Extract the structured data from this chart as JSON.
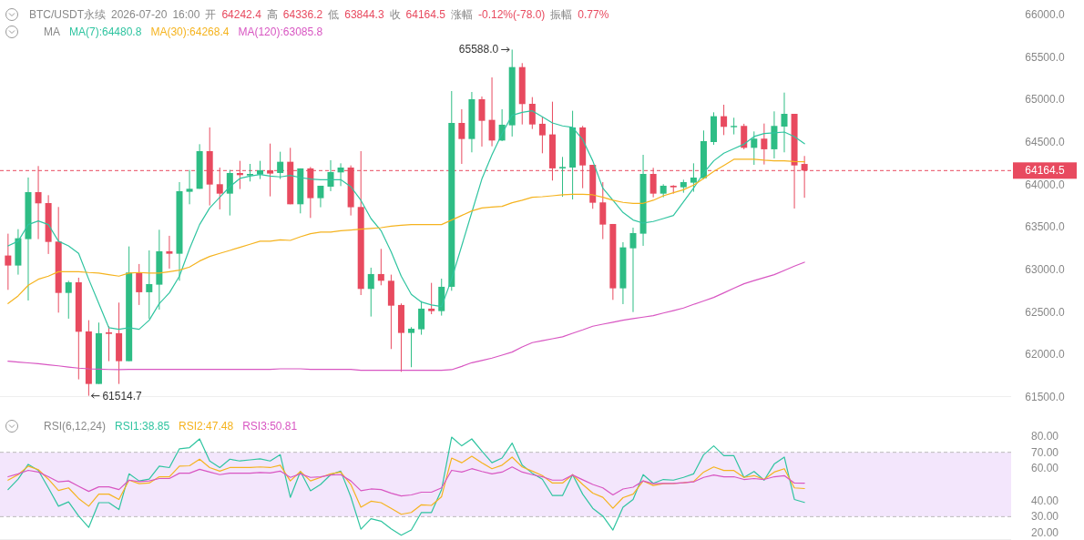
{
  "chart_data": [
    {
      "type": "candlestick",
      "title": "BTC/USDT永续 2026-07-20 16:00 开 64242.4 高 64336.2 低 63844.3 收 64164.5 涨幅 -0.12%(-78.0) 振幅 0.77%",
      "legend_title": "MA",
      "legend": "top",
      "categories": [
        null,
        null,
        null,
        null,
        null,
        null,
        null,
        null,
        null,
        null,
        null,
        null,
        null,
        null,
        null,
        null,
        null,
        null,
        null,
        null,
        null,
        null,
        null,
        null,
        null,
        null,
        null,
        null,
        null,
        null,
        null,
        null,
        null,
        null,
        null,
        null,
        null,
        null,
        null,
        null,
        null,
        null,
        null,
        null,
        null,
        null,
        null,
        null,
        null,
        null,
        null,
        null,
        null,
        null,
        null,
        null,
        null,
        null,
        null,
        null,
        null,
        null,
        null,
        null,
        null,
        null,
        null,
        null,
        null,
        null,
        null,
        null,
        null,
        null,
        null,
        null,
        null,
        null,
        null,
        null
      ],
      "ohlc": [
        [
          63165,
          63422,
          62761,
          63047
        ],
        [
          63047,
          63475,
          62940,
          63368
        ],
        [
          63358,
          64083,
          62636,
          63911
        ],
        [
          63911,
          64218,
          63358,
          63779
        ],
        [
          63782,
          63875,
          63183,
          63325
        ],
        [
          63329,
          63736,
          62493,
          62725
        ],
        [
          62725,
          62868,
          62422,
          62850
        ],
        [
          62850,
          62904,
          61708,
          62268
        ],
        [
          62272,
          62404,
          61514.7,
          61654
        ],
        [
          61654,
          62376,
          61654,
          62251
        ],
        [
          62261,
          62333,
          61922,
          62243
        ],
        [
          62251,
          62611,
          61654,
          61922
        ],
        [
          61922,
          63272,
          61922,
          62965
        ],
        [
          62965,
          63065,
          62583,
          62733
        ],
        [
          62733,
          63225,
          62422,
          62829
        ],
        [
          62822,
          63468,
          62529,
          63215
        ],
        [
          63215,
          63397,
          63011,
          63186
        ],
        [
          63186,
          64029,
          62868,
          63922
        ],
        [
          63915,
          64172,
          63768,
          63950
        ],
        [
          63950,
          64475,
          63950,
          64393
        ],
        [
          64393,
          64672,
          63754,
          64000
        ],
        [
          64004,
          64200,
          63708,
          63893
        ],
        [
          63893,
          64172,
          63636,
          64136
        ],
        [
          64136,
          64279,
          63947,
          64111
        ],
        [
          64107,
          64243,
          64036,
          64125
        ],
        [
          64118,
          64279,
          64065,
          64168
        ],
        [
          64168,
          64482,
          63861,
          64129
        ],
        [
          64136,
          64386,
          64065,
          64268
        ],
        [
          64268,
          64432,
          63768,
          63768
        ],
        [
          63768,
          64190,
          63661,
          64190
        ],
        [
          64190,
          64207,
          63607,
          63840
        ],
        [
          63840,
          63986,
          63733,
          63986
        ],
        [
          63975,
          64286,
          63922,
          64147
        ],
        [
          64143,
          64250,
          63982,
          64200
        ],
        [
          64200,
          64225,
          63636,
          63733
        ],
        [
          63736,
          64393,
          62700,
          62772
        ],
        [
          62772,
          63022,
          62447,
          62947
        ],
        [
          62947,
          63243,
          62815,
          62868
        ],
        [
          62868,
          62940,
          62065,
          62575
        ],
        [
          62583,
          62601,
          61797,
          62254
        ],
        [
          62254,
          62322,
          61851,
          62304
        ],
        [
          62297,
          62629,
          62233,
          62540
        ],
        [
          62540,
          62843,
          62475,
          62511
        ],
        [
          62511,
          62893,
          62458,
          62797
        ],
        [
          62797,
          65100,
          62750,
          64725
        ],
        [
          64725,
          64886,
          64243,
          64536
        ],
        [
          64536,
          65089,
          64379,
          65004
        ],
        [
          65004,
          65036,
          64447,
          64750
        ],
        [
          64761,
          65261,
          64450,
          64518
        ],
        [
          64518,
          64886,
          64511,
          64704
        ],
        [
          64697,
          65588.0,
          64565,
          65382
        ],
        [
          65382,
          65429,
          64707,
          64947
        ],
        [
          64950,
          65029,
          64654,
          64707
        ],
        [
          64715,
          64797,
          64368,
          64579
        ],
        [
          64590,
          64975,
          64047,
          64190
        ],
        [
          64190,
          64325,
          63857,
          64207
        ],
        [
          64200,
          64868,
          63825,
          64672
        ],
        [
          64672,
          64690,
          63957,
          64225
        ],
        [
          64232,
          64232,
          63715,
          63786
        ],
        [
          63790,
          64029,
          63358,
          63529
        ],
        [
          63536,
          63536,
          62643,
          62779
        ],
        [
          62779,
          63322,
          62593,
          63261
        ],
        [
          63250,
          63493,
          62500,
          63429
        ],
        [
          63422,
          64350,
          63279,
          64125
        ],
        [
          64125,
          64197,
          63850,
          63893
        ],
        [
          63893,
          64004,
          63850,
          63986
        ],
        [
          63986,
          63993,
          63893,
          63968
        ],
        [
          63968,
          64057,
          63904,
          64029
        ],
        [
          64022,
          64250,
          63915,
          64082
        ],
        [
          64075,
          64636,
          64065,
          64511
        ],
        [
          64500,
          64850,
          64468,
          64804
        ],
        [
          64804,
          64939,
          64582,
          64679
        ],
        [
          64675,
          64786,
          64590,
          64690
        ],
        [
          64690,
          64715,
          64415,
          64432
        ],
        [
          64432,
          64625,
          64232,
          64540
        ],
        [
          64540,
          64718,
          64236,
          64415
        ],
        [
          64415,
          64861,
          64307,
          64690
        ],
        [
          64682,
          65082,
          64379,
          64832
        ],
        [
          64832,
          64832,
          63718,
          64225
        ],
        [
          64242.4,
          64336.2,
          63844.3,
          64164.5
        ]
      ],
      "series": [
        {
          "name": "MA(7):64480.8",
          "type": "line",
          "color": "#2fc4a0",
          "values": [
            63279,
            63333,
            63529,
            63572,
            63529,
            63333,
            63279,
            63190,
            62886,
            62600,
            62315,
            62297,
            62315,
            62297,
            62404,
            62600,
            62725,
            62922,
            63243,
            63529,
            63725,
            63850,
            63975,
            64072,
            64100,
            64118,
            64100,
            64090,
            64107,
            64082,
            64065,
            64057,
            64057,
            64057,
            63975,
            63815,
            63600,
            63457,
            63208,
            62922,
            62708,
            62618,
            62583,
            62565,
            62886,
            63279,
            63672,
            64065,
            64350,
            64600,
            64815,
            64850,
            64868,
            64797,
            64725,
            64690,
            64672,
            64529,
            64279,
            63957,
            63815,
            63672,
            63583,
            63547,
            63565,
            63600,
            63636,
            63797,
            63957,
            64136,
            64279,
            64368,
            64422,
            64475,
            64565,
            64600,
            64608,
            64618,
            64565,
            64480.8
          ]
        },
        {
          "name": "MA(30):64268.4",
          "type": "line",
          "color": "#f5b31e",
          "values": [
            62600,
            62690,
            62815,
            62886,
            62922,
            62975,
            62975,
            62975,
            62965,
            62958,
            62940,
            62922,
            62958,
            62965,
            62958,
            62958,
            62975,
            62993,
            63029,
            63100,
            63154,
            63190,
            63225,
            63261,
            63297,
            63333,
            63333,
            63350,
            63343,
            63386,
            63422,
            63440,
            63440,
            63457,
            63465,
            63475,
            63483,
            63493,
            63511,
            63522,
            63529,
            63529,
            63529,
            63529,
            63583,
            63636,
            63690,
            63725,
            63736,
            63743,
            63786,
            63815,
            63850,
            63857,
            63868,
            63879,
            63886,
            63886,
            63879,
            63850,
            63815,
            63790,
            63779,
            63779,
            63815,
            63868,
            63904,
            63939,
            63993,
            64072,
            64154,
            64225,
            64297,
            64297,
            64297,
            64286,
            64279,
            64279,
            64272,
            64268.4
          ]
        },
        {
          "name": "MA(120):63085.8",
          "type": "line",
          "color": "#d856c2",
          "values": [
            61922,
            61912,
            61902,
            61893,
            61880,
            61867,
            61853,
            61840,
            61832,
            61828,
            61824,
            61822,
            61825,
            61825,
            61825,
            61825,
            61825,
            61825,
            61825,
            61825,
            61825,
            61825,
            61825,
            61825,
            61825,
            61825,
            61825,
            61832,
            61832,
            61832,
            61825,
            61825,
            61825,
            61825,
            61825,
            61815,
            61815,
            61815,
            61815,
            61815,
            61815,
            61815,
            61815,
            61815,
            61822,
            61860,
            61904,
            61930,
            61958,
            61993,
            62029,
            62090,
            62140,
            62163,
            62186,
            62208,
            62250,
            62290,
            62333,
            62357,
            62380,
            62404,
            62422,
            62440,
            62458,
            62488,
            62517,
            62547,
            62590,
            62630,
            62672,
            62725,
            62780,
            62833,
            62870,
            62905,
            62940,
            62990,
            63040,
            63085.8
          ]
        }
      ],
      "ylim": [
        61500,
        66000
      ],
      "yticks": [
        {
          "value": 61500,
          "label": "61500.0"
        },
        {
          "value": 62000,
          "label": "62000.0"
        },
        {
          "value": 62500,
          "label": "62500.0"
        },
        {
          "value": 63000,
          "label": "63000.0"
        },
        {
          "value": 63500,
          "label": "63500.0"
        },
        {
          "value": 64000,
          "label": "64000.0"
        },
        {
          "value": 64500,
          "label": "64500.0"
        },
        {
          "value": 65000,
          "label": "65000.0"
        },
        {
          "value": 65500,
          "label": "65500.0"
        },
        {
          "value": 66000,
          "label": "66000.0"
        }
      ],
      "ref_lines": [
        {
          "axis": "y",
          "value": 64164.5,
          "label": "64164.5",
          "color": "#e84a5f",
          "line_style": "dashed"
        }
      ],
      "annotations": [
        "65588.0",
        "61514.7"
      ]
    },
    {
      "type": "line",
      "legend_title": "RSI(6,12,24)",
      "legend": "top left",
      "categories": [
        null,
        null,
        null,
        null,
        null,
        null,
        null,
        null,
        null,
        null,
        null,
        null,
        null,
        null,
        null,
        null,
        null,
        null,
        null,
        null,
        null,
        null,
        null,
        null,
        null,
        null,
        null,
        null,
        null,
        null,
        null,
        null,
        null,
        null,
        null,
        null,
        null,
        null,
        null,
        null,
        null,
        null,
        null,
        null,
        null,
        null,
        null,
        null,
        null,
        null,
        null,
        null,
        null,
        null,
        null,
        null,
        null,
        null,
        null,
        null,
        null,
        null,
        null,
        null,
        null,
        null,
        null,
        null,
        null,
        null,
        null,
        null,
        null,
        null,
        null,
        null,
        null,
        null,
        null,
        null
      ],
      "series": [
        {
          "name": "RSI1:38.85",
          "color": "#2fc4a0",
          "values": [
            46.8,
            53.3,
            62.5,
            58.8,
            47.9,
            36.5,
            39.2,
            30.4,
            23.3,
            38.7,
            38.7,
            34.4,
            56.6,
            52.2,
            53.3,
            61.4,
            60.5,
            72.2,
            72.9,
            78.3,
            64.6,
            60.5,
            65.7,
            64.6,
            65.3,
            65.9,
            64.6,
            68.5,
            42.0,
            58.1,
            46.1,
            50.0,
            56.1,
            58.3,
            42.4,
            22.2,
            28.7,
            27.2,
            22.4,
            18.5,
            21.7,
            32.6,
            32.6,
            46.8,
            79.4,
            74.0,
            78.3,
            70.7,
            63.5,
            66.4,
            75.7,
            62.0,
            57.0,
            53.3,
            43.1,
            43.1,
            56.1,
            44.0,
            35.2,
            30.4,
            21.7,
            35.9,
            40.7,
            56.1,
            50.7,
            53.1,
            52.7,
            54.4,
            56.6,
            68.5,
            74.0,
            67.9,
            67.9,
            54.4,
            58.1,
            52.7,
            62.7,
            67.0,
            40.7,
            38.85
          ]
        },
        {
          "name": "RSI2:47.48",
          "color": "#f5b31e",
          "values": [
            52.7,
            56.1,
            61.4,
            59.2,
            53.3,
            46.3,
            47.9,
            41.3,
            36.5,
            44.0,
            44.0,
            40.7,
            52.7,
            50.5,
            50.9,
            54.8,
            54.8,
            61.4,
            61.6,
            65.7,
            60.5,
            58.3,
            60.5,
            60.5,
            60.5,
            60.9,
            60.5,
            62.0,
            52.2,
            58.1,
            52.2,
            54.4,
            56.6,
            57.7,
            50.0,
            35.9,
            39.6,
            38.7,
            35.2,
            31.5,
            32.6,
            37.4,
            37.0,
            42.4,
            66.4,
            63.5,
            67.5,
            63.5,
            59.8,
            62.0,
            67.0,
            60.9,
            58.3,
            55.5,
            50.9,
            50.9,
            56.1,
            50.0,
            44.6,
            42.0,
            35.2,
            41.8,
            44.0,
            52.2,
            49.4,
            50.5,
            50.7,
            51.1,
            51.8,
            57.7,
            60.9,
            58.7,
            58.7,
            54.4,
            55.5,
            53.1,
            57.7,
            59.8,
            47.9,
            47.48
          ]
        },
        {
          "name": "RSI3:50.81",
          "color": "#d856c2",
          "values": [
            54.8,
            56.6,
            58.8,
            57.7,
            54.8,
            51.6,
            52.2,
            48.9,
            45.7,
            48.5,
            48.5,
            46.8,
            52.7,
            51.8,
            52.2,
            53.7,
            53.7,
            57.0,
            57.0,
            59.4,
            57.7,
            56.1,
            57.0,
            57.0,
            57.0,
            57.4,
            57.2,
            58.3,
            54.4,
            56.6,
            54.4,
            54.8,
            55.9,
            56.1,
            52.2,
            46.1,
            47.2,
            46.8,
            44.6,
            42.9,
            43.5,
            45.2,
            45.2,
            47.9,
            58.8,
            57.7,
            59.8,
            58.1,
            56.6,
            57.7,
            60.9,
            57.7,
            56.1,
            54.8,
            52.7,
            52.7,
            55.9,
            52.9,
            50.0,
            47.9,
            43.5,
            47.2,
            48.3,
            52.2,
            50.5,
            50.7,
            50.7,
            51.1,
            51.6,
            54.4,
            55.9,
            54.8,
            54.8,
            53.1,
            53.7,
            53.1,
            54.8,
            55.5,
            50.9,
            50.81
          ]
        }
      ],
      "ylim": [
        15.5,
        80
      ],
      "yticks": [
        {
          "value": 20,
          "label": "20.00"
        },
        {
          "value": 30,
          "label": "30.00"
        },
        {
          "value": 40,
          "label": "40.00"
        },
        {
          "value": 60,
          "label": "60.00"
        },
        {
          "value": 70,
          "label": "70.00"
        },
        {
          "value": 80,
          "label": "80.00"
        }
      ],
      "bands": [
        {
          "axis": "y",
          "from": 30,
          "to": 70,
          "color": "#f3e6fc"
        }
      ]
    }
  ]
}
